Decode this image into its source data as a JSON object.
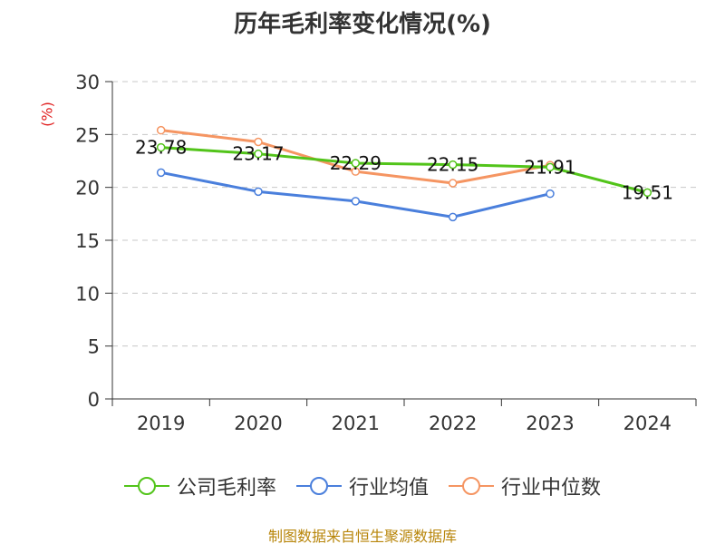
{
  "chart_data": {
    "type": "line",
    "title": "历年毛利率变化情况(%)",
    "ylabel": "(%)",
    "xlabel": "",
    "categories": [
      "2019",
      "2020",
      "2021",
      "2022",
      "2023",
      "2024"
    ],
    "ylim": [
      0,
      30
    ],
    "yticks": [
      0,
      5,
      10,
      15,
      20,
      25,
      30
    ],
    "grid": true,
    "legend_position": "bottom",
    "series": [
      {
        "name": "公司毛利率",
        "color": "#52c41a",
        "values": [
          23.78,
          23.17,
          22.29,
          22.15,
          21.91,
          19.51
        ],
        "labels": [
          "23.78",
          "23.17",
          "22.29",
          "22.15",
          "21.91",
          "19.51"
        ]
      },
      {
        "name": "行业均值",
        "color": "#4a7fdc",
        "values": [
          21.4,
          19.6,
          18.7,
          17.2,
          19.4,
          null
        ]
      },
      {
        "name": "行业中位数",
        "color": "#f59562",
        "values": [
          25.4,
          24.3,
          21.5,
          20.4,
          22.1,
          null
        ]
      }
    ]
  },
  "source": "制图数据来自恒生聚源数据库"
}
